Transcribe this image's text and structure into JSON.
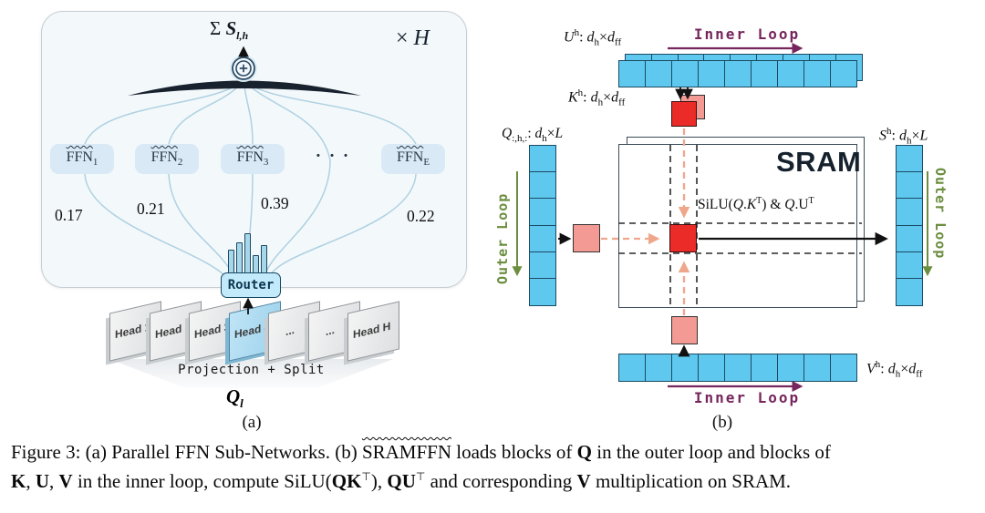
{
  "figure": {
    "caption_line1": "Figure 3: (a) Parallel FFN Sub-Networks. (b) ~~SRAMFFN~~ loads blocks of **Q** in the outer loop and blocks of",
    "caption_line2": "**K**, **U**, **V** in the inner loop, compute SiLU(**QK**^{⊤}), **QU**^{⊤} and corresponding **V** multiplication on SRAM."
  },
  "panel_a": {
    "tag": "(a)",
    "sum_label": "Σ **S**_{l,h}",
    "repeat_label": "× *H*",
    "ffn_experts": [
      "~~FFN~~_{1}",
      "~~FFN~~_{2}",
      "~~FFN~~_{3}",
      "~~FFN~~_{E}"
    ],
    "ffn_dots": "· · ·",
    "gate_values": [
      "0.17",
      "0.21",
      "0.39",
      "0.22"
    ],
    "router_label": "Router",
    "router_bar_heights": [
      26,
      34,
      44,
      20,
      31
    ],
    "heads": [
      "Head 1",
      "Head 2",
      "Head 3",
      "Head 4",
      "...",
      "...",
      "Head H"
    ],
    "highlighted_head_index": 3,
    "projection_label": "Projection + Split",
    "input_label": "**Q**_{l}"
  },
  "panel_b": {
    "tag": "(b)",
    "u_label": "*U*^{h}: *d*_{h}×*d*_{ff}",
    "k_label": "*K*^{h}: *d*_{h}×*d*_{ff}",
    "q_label": "*Q*_{:,h,:}: *d*_{h}×*L*",
    "s_label": "*S*^{h}: *d*_{h}×*L*",
    "v_label": "*V*^{h}: *d*_{h}×*d*_{ff}",
    "sram_label": "SRAM",
    "compute_label": "SiLU(*Q*.*K*^{T}) & *Q*.U^{T}",
    "inner_loop_top": "Inner Loop",
    "inner_loop_bottom": "Inner Loop",
    "outer_loop_left": "Outer Loop",
    "outer_loop_right": "Outer Loop",
    "u_row_cells": 9,
    "v_row_cells": 9,
    "q_col_cells": 6,
    "s_col_cells": 6
  },
  "colors": {
    "cell_blue": "#5fc8ef",
    "block_red": "#ea2b27",
    "block_pink": "#f29a93",
    "salmon_arrow": "#efa78c",
    "inner_loop_purple": "#76265d",
    "outer_loop_green": "#6b8e3f",
    "ffn_box_blue": "#d9eaf6",
    "router_blue": "#c3eafb",
    "panel_a_background": "#f3f8fb",
    "highlighted_head_blue": "#a9daf1"
  }
}
